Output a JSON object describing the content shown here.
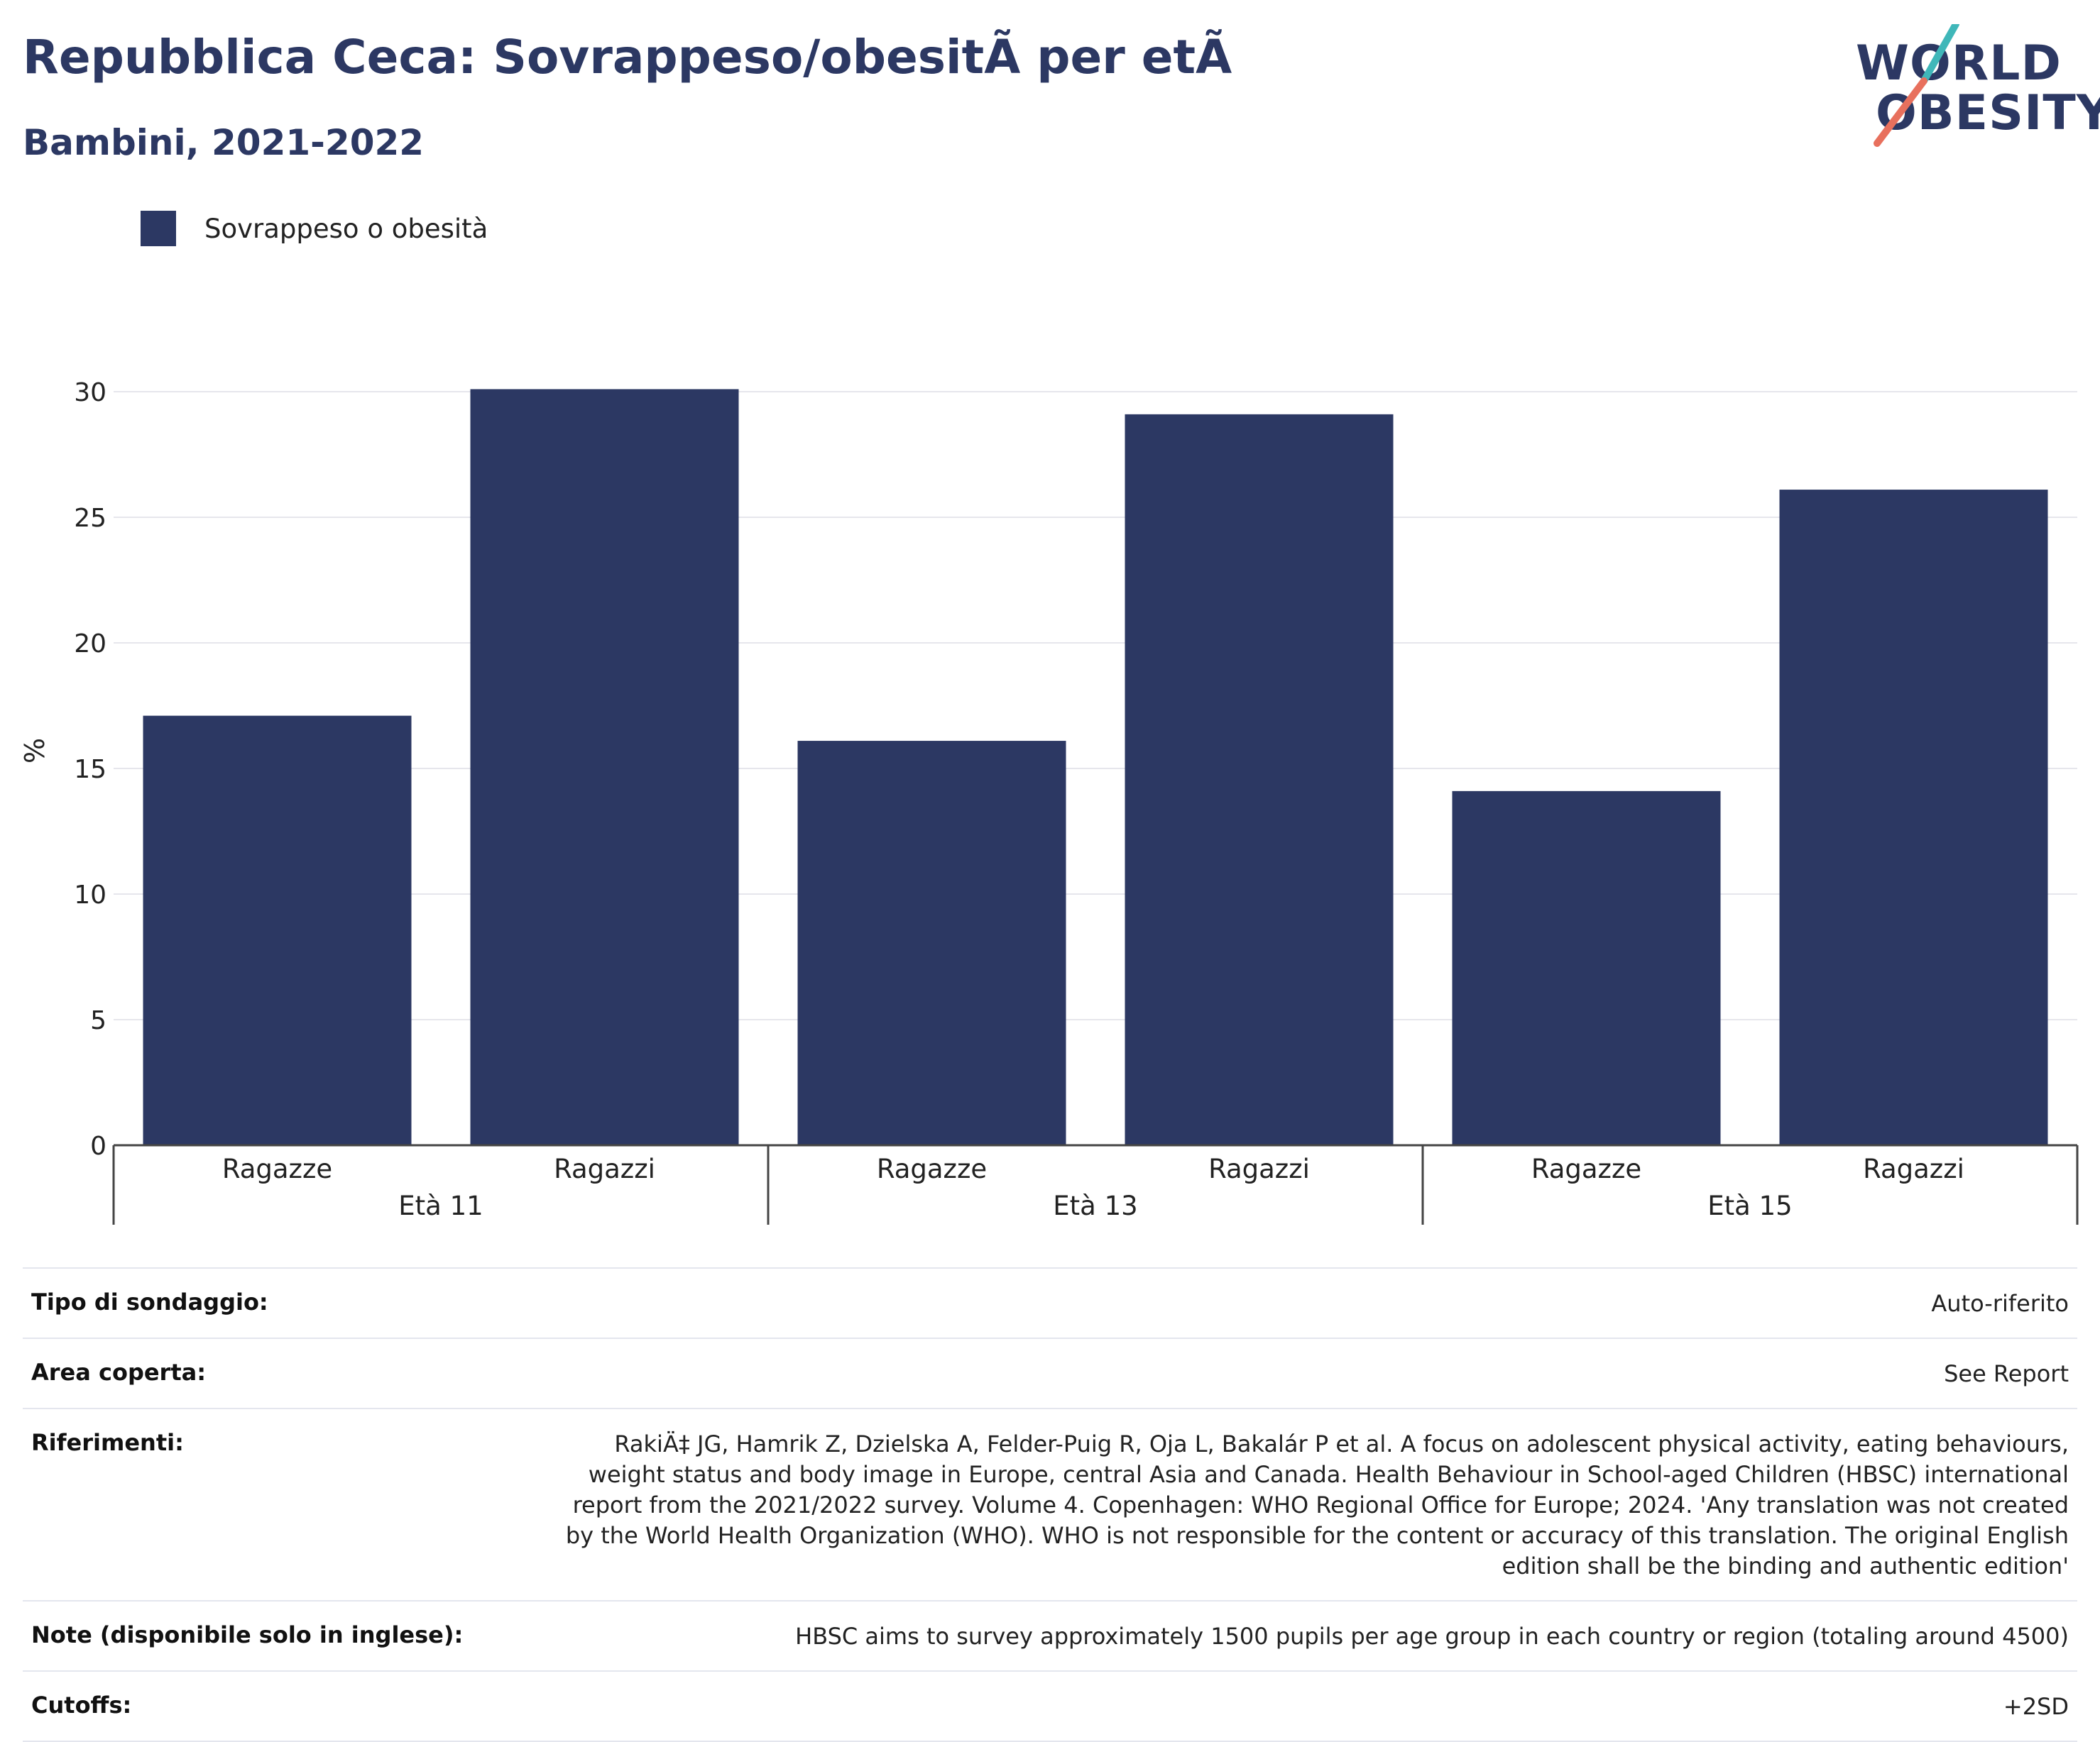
{
  "header": {
    "title": "Repubblica Ceca: Sovrappeso/obesitÃ  per etÃ",
    "subtitle": "Bambini, 2021-2022"
  },
  "logo": {
    "line1": "WORLD",
    "line2": "OBESITY"
  },
  "colors": {
    "bar": "#2c3863",
    "grid": "#e6e6ec",
    "axis": "#444444",
    "logo_teal": "#3fb7b9",
    "logo_coral": "#e8705d"
  },
  "chart_data": {
    "type": "bar",
    "legend": {
      "label": "Sovrappeso o obesità",
      "placement": "top-left"
    },
    "ylabel": "%",
    "ylim": [
      0,
      30
    ],
    "yticks": [
      0,
      5,
      10,
      15,
      20,
      25,
      30
    ],
    "grid": true,
    "groups": [
      {
        "label": "Età 11",
        "bars": [
          {
            "category": "Ragazze",
            "value": 17.1
          },
          {
            "category": "Ragazzi",
            "value": 30.1
          }
        ]
      },
      {
        "label": "Età 13",
        "bars": [
          {
            "category": "Ragazze",
            "value": 16.1
          },
          {
            "category": "Ragazzi",
            "value": 29.1
          }
        ]
      },
      {
        "label": "Età 15",
        "bars": [
          {
            "category": "Ragazze",
            "value": 14.1
          },
          {
            "category": "Ragazzi",
            "value": 26.1
          }
        ]
      }
    ]
  },
  "meta": [
    {
      "key": "Tipo di sondaggio:",
      "value": "Auto-riferito"
    },
    {
      "key": "Area coperta:",
      "value": "See Report"
    },
    {
      "key": "Riferimenti:",
      "value": "RakiÄ‡ JG, Hamrik Z, Dzielska A, Felder-Puig R, Oja L, Bakalár P et al. A focus on adolescent physical activity, eating behaviours, weight status and body image in Europe, central Asia and Canada. Health Behaviour in School-aged Children (HBSC) international report from the 2021/2022 survey. Volume 4. Copenhagen: WHO Regional Office for Europe; 2024. 'Any translation was not created by the World Health Organization (WHO). WHO is not responsible for the content or accuracy of this translation. The original English edition shall be the binding and authentic edition'"
    },
    {
      "key": "Note (disponibile solo in inglese):",
      "value": "HBSC aims to survey approximately 1500 pupils per age group in each country or region (totaling around 4500)"
    },
    {
      "key": "Cutoffs:",
      "value": "+2SD"
    }
  ]
}
